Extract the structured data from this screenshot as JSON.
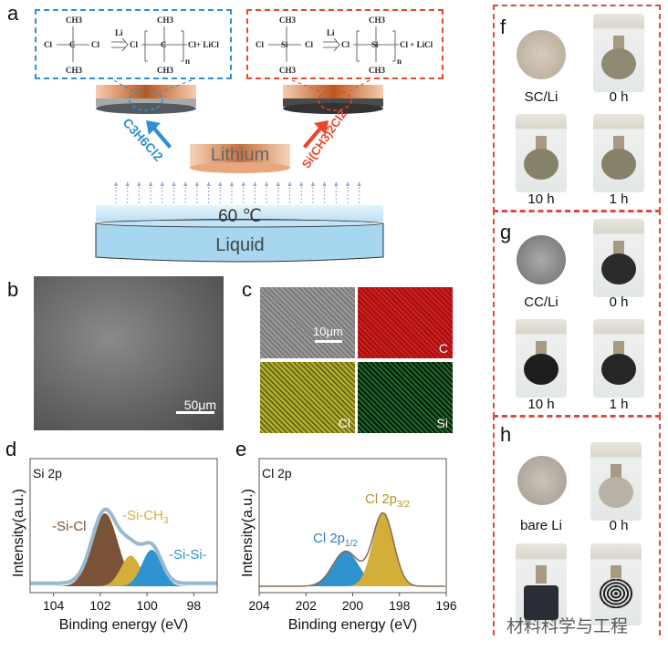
{
  "panels": {
    "a": {
      "label": "a",
      "reaction_left": {
        "reactant_top": "CH3",
        "reactant_bottom": "CH3",
        "left_cl": "Cl",
        "center": "C",
        "right_cl": "Cl",
        "reagent": "Li",
        "product_cl": "Cl",
        "product_center": "C",
        "product_top": "CH3",
        "product_bottom": "CH3",
        "n": "n",
        "product_tail": "Cl+ LiCl"
      },
      "reaction_right": {
        "reactant_top": "CH3",
        "reactant_bottom": "CH3",
        "left_cl": "Cl",
        "center": "Si",
        "right_cl": "Cl",
        "reagent": "Li",
        "product_cl": "Cl",
        "product_center": "Si",
        "product_top": "CH3",
        "product_bottom": "CH3",
        "n": "n",
        "product_tail": "Cl + LiCl"
      },
      "left_gas": "C3H6Cl2",
      "right_gas": "Si(CH3)2Cl2",
      "lithium": "Lithium",
      "temperature": "60 ℃",
      "liquid": "Liquid",
      "colors": {
        "blue": "#2f8fd0",
        "red": "#e8472b",
        "lithium": "#d9824a"
      }
    },
    "b": {
      "label": "b",
      "scale_bar": "50μm"
    },
    "c": {
      "label": "c",
      "scale_bar": "10μm",
      "maps": [
        "C",
        "Cl",
        "Si"
      ]
    },
    "f": {
      "label": "f",
      "sample": "SC/Li",
      "times": [
        "0 h",
        "10 h",
        "1 h"
      ]
    },
    "g": {
      "label": "g",
      "sample": "CC/Li",
      "times": [
        "0 h",
        "10 h",
        "1 h"
      ]
    },
    "h": {
      "label": "h",
      "sample": "bare Li",
      "times": [
        "0 h"
      ]
    },
    "watermark": "材料科学与工程"
  },
  "chart_data": [
    {
      "panel": "d",
      "type": "area",
      "title": "Si 2p",
      "xlabel": "Binding energy (eV)",
      "ylabel": "Intensity(a.u.)",
      "xlim": [
        105,
        97
      ],
      "xticks": [
        "104",
        "102",
        "100",
        "98"
      ],
      "reversed_x": true,
      "series": [
        {
          "name": "-Si-Cl",
          "center": 101.8,
          "amplitude": 1.0,
          "width": 0.55,
          "color": "#7a5238"
        },
        {
          "name": "-Si-CH3",
          "center": 100.7,
          "amplitude": 0.42,
          "width": 0.42,
          "color": "#d4ae3a"
        },
        {
          "name": "-Si-Si-",
          "center": 99.8,
          "amplitude": 0.5,
          "width": 0.42,
          "color": "#2f93cf"
        }
      ]
    },
    {
      "panel": "e",
      "type": "area",
      "title": "Cl 2p",
      "xlabel": "Binding energy (eV)",
      "ylabel": "Intensity(a.u.)",
      "xlim": [
        204,
        196
      ],
      "xticks": [
        "204",
        "202",
        "200",
        "198",
        "196"
      ],
      "reversed_x": true,
      "series": [
        {
          "name": "Cl 2p1/2",
          "center": 200.3,
          "amplitude": 0.48,
          "width": 0.55,
          "color": "#2f93cf"
        },
        {
          "name": "Cl 2p3/2",
          "center": 198.7,
          "amplitude": 1.0,
          "width": 0.45,
          "color": "#d4ae3a"
        }
      ]
    }
  ]
}
